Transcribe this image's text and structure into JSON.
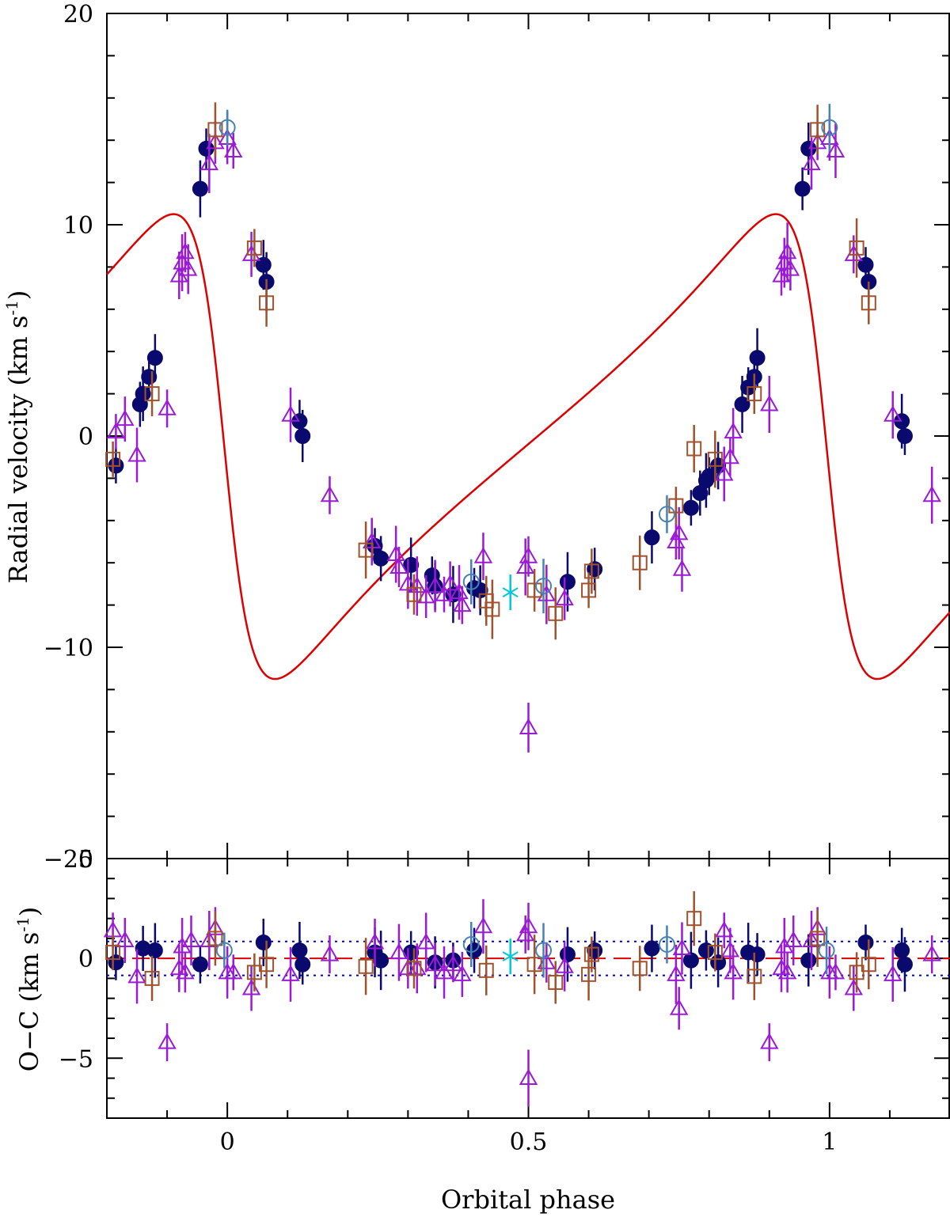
{
  "chart_data": [
    {
      "type": "scatter",
      "panel": "top",
      "title": "",
      "xlabel": "",
      "ylabel": "Radial velocity (km s",
      "ylabel_superscript": "-1",
      "ylabel_close": ")",
      "xlim": [
        -0.2,
        1.2
      ],
      "ylim": [
        -20,
        20
      ],
      "yticks": [
        {
          "value": 20,
          "label": "20"
        },
        {
          "value": 10,
          "label": "10"
        },
        {
          "value": 0,
          "label": "0"
        },
        {
          "value": -10,
          "label": "−10"
        },
        {
          "value": -20,
          "label": "−20"
        }
      ],
      "model_curve": {
        "name": "orbital fit",
        "color": "#dd0000",
        "K": 11.0,
        "e": 0.55,
        "omega_deg": 90,
        "gamma": -0.5,
        "T0": -0.005
      },
      "series": [
        {
          "name": "filled circles",
          "marker": "filled-circle",
          "color": "#0a0a6e",
          "points": [
            [
              -0.185,
              -1.4
            ],
            [
              -0.145,
              1.5
            ],
            [
              -0.14,
              2.0
            ],
            [
              -0.13,
              2.8
            ],
            [
              -0.12,
              3.7
            ],
            [
              -0.045,
              11.7
            ],
            [
              -0.035,
              13.6
            ],
            [
              0.06,
              8.1
            ],
            [
              0.065,
              7.3
            ],
            [
              0.12,
              0.7
            ],
            [
              0.125,
              0.0
            ],
            [
              0.245,
              -5.2
            ],
            [
              0.255,
              -5.8
            ],
            [
              0.305,
              -6.1
            ],
            [
              0.34,
              -6.6
            ],
            [
              0.345,
              -7.1
            ],
            [
              0.375,
              -7.5
            ],
            [
              0.41,
              -7.2
            ],
            [
              0.42,
              -7.3
            ],
            [
              0.565,
              -6.9
            ],
            [
              0.61,
              -6.3
            ],
            [
              0.705,
              -4.8
            ],
            [
              0.77,
              -3.4
            ],
            [
              0.785,
              -2.7
            ],
            [
              0.795,
              -2.1
            ],
            [
              0.8,
              -1.9
            ],
            [
              0.815,
              -1.4
            ],
            [
              0.855,
              1.5
            ],
            [
              0.865,
              2.3
            ],
            [
              0.875,
              2.8
            ],
            [
              0.88,
              3.7
            ],
            [
              0.955,
              11.7
            ],
            [
              0.965,
              13.6
            ],
            [
              1.06,
              8.1
            ],
            [
              1.065,
              7.3
            ],
            [
              1.12,
              0.7
            ],
            [
              1.125,
              0.0
            ]
          ]
        },
        {
          "name": "open triangles",
          "marker": "open-triangle",
          "color": "#9a1ad6",
          "points": [
            [
              -0.185,
              0.2
            ],
            [
              -0.17,
              0.8
            ],
            [
              -0.15,
              -0.9
            ],
            [
              -0.1,
              1.3
            ],
            [
              -0.08,
              7.6
            ],
            [
              -0.075,
              8.2
            ],
            [
              -0.07,
              8.7
            ],
            [
              -0.065,
              7.9
            ],
            [
              -0.03,
              12.9
            ],
            [
              -0.02,
              13.9
            ],
            [
              0.0,
              14.1
            ],
            [
              0.01,
              13.5
            ],
            [
              0.04,
              8.6
            ],
            [
              0.105,
              1.0
            ],
            [
              0.17,
              -2.8
            ],
            [
              0.24,
              -5.0
            ],
            [
              0.28,
              -5.6
            ],
            [
              0.285,
              -6.2
            ],
            [
              0.3,
              -7.0
            ],
            [
              0.315,
              -7.1
            ],
            [
              0.33,
              -7.6
            ],
            [
              0.345,
              -7.1
            ],
            [
              0.36,
              -7.5
            ],
            [
              0.37,
              -7.0
            ],
            [
              0.385,
              -7.4
            ],
            [
              0.39,
              -8.0
            ],
            [
              0.425,
              -5.7
            ],
            [
              0.495,
              -6.2
            ],
            [
              0.5,
              -5.7
            ],
            [
              0.5,
              -13.8
            ],
            [
              0.53,
              -7.5
            ],
            [
              0.56,
              -7.7
            ],
            [
              0.75,
              -4.6
            ],
            [
              0.745,
              -5.0
            ],
            [
              0.755,
              -6.3
            ],
            [
              0.825,
              -1.8
            ],
            [
              0.835,
              -1.0
            ],
            [
              0.84,
              0.2
            ],
            [
              0.9,
              1.5
            ],
            [
              0.92,
              7.6
            ],
            [
              0.925,
              8.2
            ],
            [
              0.93,
              8.7
            ],
            [
              0.935,
              7.9
            ],
            [
              0.97,
              12.9
            ],
            [
              0.98,
              13.9
            ],
            [
              1.0,
              14.1
            ],
            [
              1.01,
              13.5
            ],
            [
              1.04,
              8.6
            ],
            [
              1.105,
              1.0
            ],
            [
              1.17,
              -2.8
            ]
          ]
        },
        {
          "name": "open squares",
          "marker": "open-square",
          "color": "#a0522d",
          "points": [
            [
              -0.19,
              -1.1
            ],
            [
              -0.125,
              2.0
            ],
            [
              -0.02,
              14.5
            ],
            [
              0.045,
              8.9
            ],
            [
              0.065,
              6.3
            ],
            [
              0.23,
              -5.4
            ],
            [
              0.31,
              -7.5
            ],
            [
              0.43,
              -7.8
            ],
            [
              0.44,
              -8.2
            ],
            [
              0.51,
              -7.3
            ],
            [
              0.545,
              -8.4
            ],
            [
              0.6,
              -7.3
            ],
            [
              0.605,
              -6.4
            ],
            [
              0.685,
              -6.0
            ],
            [
              0.745,
              -3.3
            ],
            [
              0.775,
              -0.6
            ],
            [
              0.81,
              -1.1
            ],
            [
              0.875,
              2.0
            ],
            [
              0.98,
              14.5
            ],
            [
              1.045,
              8.9
            ],
            [
              1.065,
              6.3
            ]
          ]
        },
        {
          "name": "open circles",
          "marker": "open-circle",
          "color": "#4682b4",
          "points": [
            [
              0.0,
              14.6
            ],
            [
              0.405,
              -6.9
            ],
            [
              0.525,
              -7.1
            ],
            [
              0.73,
              -3.7
            ],
            [
              1.0,
              14.6
            ]
          ]
        },
        {
          "name": "asterisks",
          "marker": "asterisk",
          "color": "#00c8d7",
          "points": [
            [
              0.47,
              -7.4
            ]
          ]
        }
      ]
    },
    {
      "type": "scatter",
      "panel": "bottom",
      "title": "",
      "xlabel": "Orbital phase",
      "ylabel": "O−C (km s",
      "ylabel_superscript": "-1",
      "ylabel_close": ")",
      "xlim": [
        -0.2,
        1.2
      ],
      "ylim": [
        -8,
        5
      ],
      "xticks": [
        {
          "value": 0,
          "label": "0"
        },
        {
          "value": 0.5,
          "label": "0.5"
        },
        {
          "value": 1,
          "label": "1"
        }
      ],
      "yticks": [
        {
          "value": 5,
          "label": "5"
        },
        {
          "value": 0,
          "label": "0"
        },
        {
          "value": -5,
          "label": "−5"
        }
      ],
      "reference_lines": [
        {
          "name": "zero",
          "value": 0,
          "style": "dashed",
          "color": "#dd0000"
        },
        {
          "name": "upper sigma",
          "value": 0.85,
          "style": "dotted",
          "color": "#0000cc"
        },
        {
          "name": "lower sigma",
          "value": -0.85,
          "style": "dotted",
          "color": "#0000cc"
        }
      ],
      "series": [
        {
          "name": "filled circles",
          "marker": "filled-circle",
          "color": "#0a0a6e",
          "points": [
            [
              -0.185,
              -0.2
            ],
            [
              -0.14,
              0.5
            ],
            [
              -0.12,
              0.4
            ],
            [
              -0.045,
              -0.3
            ],
            [
              0.06,
              0.8
            ],
            [
              0.12,
              0.4
            ],
            [
              0.125,
              -0.3
            ],
            [
              0.245,
              0.3
            ],
            [
              0.255,
              -0.1
            ],
            [
              0.305,
              0.3
            ],
            [
              0.345,
              -0.2
            ],
            [
              0.375,
              -0.1
            ],
            [
              0.41,
              0.4
            ],
            [
              0.565,
              0.2
            ],
            [
              0.61,
              0.4
            ],
            [
              0.705,
              0.5
            ],
            [
              0.77,
              -0.1
            ],
            [
              0.795,
              0.4
            ],
            [
              0.815,
              -0.2
            ],
            [
              0.865,
              0.3
            ],
            [
              0.88,
              0.2
            ],
            [
              0.965,
              -0.1
            ],
            [
              1.06,
              0.8
            ],
            [
              1.12,
              0.4
            ],
            [
              1.125,
              -0.3
            ]
          ]
        },
        {
          "name": "open triangles",
          "marker": "open-triangle",
          "color": "#9a1ad6",
          "points": [
            [
              -0.19,
              1.4
            ],
            [
              -0.17,
              0.9
            ],
            [
              -0.15,
              -0.9
            ],
            [
              -0.1,
              -4.2
            ],
            [
              -0.08,
              -0.5
            ],
            [
              -0.075,
              0.6
            ],
            [
              -0.07,
              -0.7
            ],
            [
              -0.06,
              0.9
            ],
            [
              -0.03,
              0.9
            ],
            [
              -0.02,
              1.5
            ],
            [
              0.0,
              -0.7
            ],
            [
              0.01,
              -0.7
            ],
            [
              0.04,
              -1.5
            ],
            [
              0.105,
              -0.8
            ],
            [
              0.17,
              0.2
            ],
            [
              0.245,
              0.8
            ],
            [
              0.285,
              0.3
            ],
            [
              0.3,
              -0.5
            ],
            [
              0.315,
              -0.5
            ],
            [
              0.33,
              0.8
            ],
            [
              0.345,
              -0.3
            ],
            [
              0.36,
              -0.7
            ],
            [
              0.375,
              -0.3
            ],
            [
              0.39,
              -0.8
            ],
            [
              0.425,
              1.6
            ],
            [
              0.495,
              1.2
            ],
            [
              0.5,
              1.6
            ],
            [
              0.5,
              -6.0
            ],
            [
              0.53,
              -0.2
            ],
            [
              0.56,
              -0.4
            ],
            [
              0.745,
              -0.8
            ],
            [
              0.75,
              -2.5
            ],
            [
              0.755,
              0.5
            ],
            [
              0.825,
              1.4
            ],
            [
              0.835,
              0.4
            ],
            [
              0.84,
              -0.7
            ],
            [
              0.9,
              -4.2
            ],
            [
              0.92,
              -0.5
            ],
            [
              0.925,
              0.6
            ],
            [
              0.93,
              -0.7
            ],
            [
              0.94,
              0.9
            ],
            [
              0.97,
              0.9
            ],
            [
              0.98,
              1.5
            ],
            [
              1.0,
              -0.7
            ],
            [
              1.01,
              -0.7
            ],
            [
              1.04,
              -1.5
            ],
            [
              1.105,
              -0.8
            ],
            [
              1.17,
              0.2
            ]
          ]
        },
        {
          "name": "open squares",
          "marker": "open-square",
          "color": "#a0522d",
          "points": [
            [
              -0.19,
              0.3
            ],
            [
              -0.125,
              -1.0
            ],
            [
              -0.02,
              1.0
            ],
            [
              0.045,
              -0.7
            ],
            [
              0.065,
              -0.3
            ],
            [
              0.23,
              -0.4
            ],
            [
              0.31,
              -0.5
            ],
            [
              0.43,
              -0.6
            ],
            [
              0.51,
              -0.3
            ],
            [
              0.545,
              -1.2
            ],
            [
              0.6,
              -0.8
            ],
            [
              0.605,
              0.2
            ],
            [
              0.685,
              -0.5
            ],
            [
              0.775,
              2.0
            ],
            [
              0.81,
              0.3
            ],
            [
              0.875,
              -0.9
            ],
            [
              0.98,
              1.0
            ],
            [
              1.045,
              -0.7
            ],
            [
              1.065,
              -0.3
            ]
          ]
        },
        {
          "name": "open circles",
          "marker": "open-circle",
          "color": "#4682b4",
          "points": [
            [
              -0.005,
              0.4
            ],
            [
              0.405,
              0.7
            ],
            [
              0.525,
              0.4
            ],
            [
              0.73,
              0.7
            ],
            [
              0.995,
              0.4
            ]
          ]
        },
        {
          "name": "asterisks",
          "marker": "asterisk",
          "color": "#00c8d7",
          "points": [
            [
              0.47,
              0.1
            ]
          ]
        }
      ]
    }
  ]
}
